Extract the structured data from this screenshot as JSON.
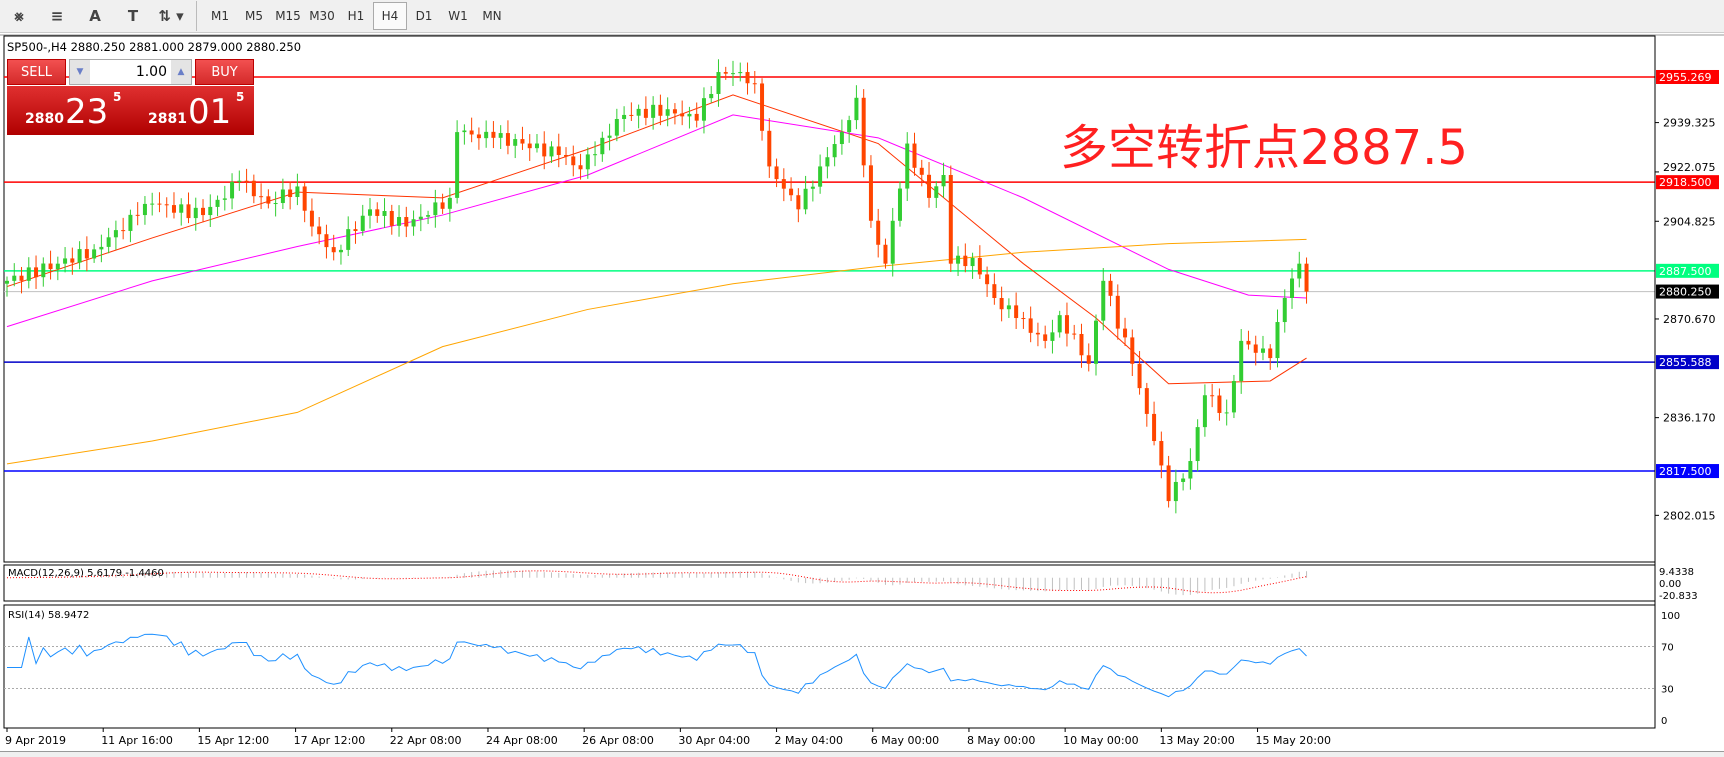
{
  "toolbar": {
    "icons": [
      "indicators-icon",
      "fibo-icon",
      "text-icon",
      "text-label-icon",
      "arrows-icon"
    ],
    "icon_glyphs": [
      "⨳",
      "≡",
      "A",
      "T",
      "⇅ ▾"
    ],
    "timeframes": [
      "M1",
      "M5",
      "M15",
      "M30",
      "H1",
      "H4",
      "D1",
      "W1",
      "MN"
    ],
    "active": "H4"
  },
  "header": {
    "symbol_line": "SP500-,H4  2880.250 2881.000 2879.000 2880.250"
  },
  "trade_panel": {
    "sell_label": "SELL",
    "buy_label": "BUY",
    "lot": "1.00",
    "sell_big": "2880",
    "sell_main": "23",
    "sell_sup": "5",
    "buy_big": "2881",
    "buy_main": "01",
    "buy_sup": "5"
  },
  "annotation": "多空转折点2887.5",
  "chart_data": {
    "type": "candlestick",
    "symbol": "SP500-",
    "timeframe": "H4",
    "ylim": [
      2785.7,
      2969.6
    ],
    "y_ticks": [
      "2939.325",
      "2922.075",
      "2904.825",
      "2870.670",
      "2836.170",
      "2802.015"
    ],
    "y_tick_values": [
      2939.325,
      2922.075,
      2904.825,
      2870.67,
      2836.17,
      2802.015
    ],
    "x_labels": [
      "9 Apr 2019",
      "11 Apr 16:00",
      "15 Apr 12:00",
      "17 Apr 12:00",
      "22 Apr 08:00",
      "24 Apr 08:00",
      "26 Apr 08:00",
      "30 Apr 04:00",
      "2 May 04:00",
      "6 May 00:00",
      "8 May 00:00",
      "10 May 00:00",
      "13 May 20:00",
      "15 May 20:00"
    ],
    "bar_count": 180,
    "close_keypoints": [
      [
        0,
        2884
      ],
      [
        7,
        2890
      ],
      [
        12,
        2895
      ],
      [
        18,
        2907
      ],
      [
        20,
        2911
      ],
      [
        27,
        2907
      ],
      [
        32,
        2919
      ],
      [
        36,
        2911
      ],
      [
        40,
        2917
      ],
      [
        42,
        2903
      ],
      [
        45,
        2894
      ],
      [
        50,
        2909
      ],
      [
        55,
        2903
      ],
      [
        61,
        2913
      ],
      [
        62,
        2936
      ],
      [
        67,
        2934
      ],
      [
        71,
        2932
      ],
      [
        76,
        2928
      ],
      [
        79,
        2923
      ],
      [
        82,
        2934
      ],
      [
        85,
        2942
      ],
      [
        91,
        2944
      ],
      [
        95,
        2940
      ],
      [
        98,
        2957
      ],
      [
        101,
        2957
      ],
      [
        103,
        2953
      ],
      [
        105,
        2924
      ],
      [
        109,
        2909
      ],
      [
        112,
        2924
      ],
      [
        115,
        2936
      ],
      [
        117,
        2948
      ],
      [
        119,
        2905
      ],
      [
        121,
        2890
      ],
      [
        124,
        2932
      ],
      [
        127,
        2913
      ],
      [
        129,
        2921
      ],
      [
        130,
        2890
      ],
      [
        133,
        2892
      ],
      [
        136,
        2878
      ],
      [
        139,
        2871
      ],
      [
        143,
        2863
      ],
      [
        145,
        2872
      ],
      [
        149,
        2855
      ],
      [
        151,
        2884
      ],
      [
        155,
        2855
      ],
      [
        158,
        2828
      ],
      [
        160,
        2807
      ],
      [
        163,
        2821
      ],
      [
        165,
        2844
      ],
      [
        168,
        2838
      ],
      [
        170,
        2863
      ],
      [
        174,
        2857
      ],
      [
        176,
        2878
      ],
      [
        178,
        2890
      ],
      [
        179,
        2880.25
      ]
    ],
    "moving_averages": [
      {
        "color": "#ff3300",
        "points": [
          [
            0,
            2882
          ],
          [
            20,
            2899
          ],
          [
            40,
            2915
          ],
          [
            60,
            2913
          ],
          [
            80,
            2930
          ],
          [
            100,
            2949
          ],
          [
            120,
            2932
          ],
          [
            140,
            2890
          ],
          [
            150,
            2871
          ],
          [
            160,
            2848
          ],
          [
            174,
            2849
          ],
          [
            179,
            2857
          ]
        ]
      },
      {
        "color": "#ff00ff",
        "points": [
          [
            0,
            2868
          ],
          [
            20,
            2884
          ],
          [
            40,
            2896
          ],
          [
            60,
            2907
          ],
          [
            80,
            2921
          ],
          [
            100,
            2942
          ],
          [
            120,
            2934
          ],
          [
            140,
            2913
          ],
          [
            160,
            2888
          ],
          [
            171,
            2879
          ],
          [
            179,
            2878
          ]
        ]
      },
      {
        "color": "#ffa500",
        "points": [
          [
            0,
            2820
          ],
          [
            20,
            2828
          ],
          [
            40,
            2838
          ],
          [
            60,
            2861
          ],
          [
            80,
            2874
          ],
          [
            100,
            2883
          ],
          [
            120,
            2889
          ],
          [
            140,
            2894
          ],
          [
            160,
            2897
          ],
          [
            179,
            2898.5
          ]
        ]
      }
    ],
    "levels": [
      {
        "price": 2955.269,
        "label": "2955.269",
        "color": "#ff0000"
      },
      {
        "price": 2918.5,
        "label": "2918.500",
        "color": "#ff0000"
      },
      {
        "price": 2887.5,
        "label": "2887.500",
        "color": "#00ff80"
      },
      {
        "price": 2880.25,
        "label": "2880.250",
        "color": "#000000",
        "line": "#c0c0c0"
      },
      {
        "price": 2855.588,
        "label": "2855.588",
        "color": "#0000c8"
      },
      {
        "price": 2817.5,
        "label": "2817.500",
        "color": "#0000ff"
      }
    ],
    "colors": {
      "bull": "#32cd32",
      "bear": "#ff4500"
    },
    "macd": {
      "label": "MACD(12,26,9) 5.6179 -1.4460",
      "ticks": [
        "9.4338",
        "0.00",
        "-20.833"
      ],
      "ylim": [
        -20.833,
        9.4338
      ]
    },
    "rsi": {
      "label": "RSI(14) 58.9472",
      "ticks": [
        "100",
        "70",
        "30",
        "0"
      ],
      "levels": [
        70,
        30
      ],
      "color": "#1e90ff"
    }
  }
}
